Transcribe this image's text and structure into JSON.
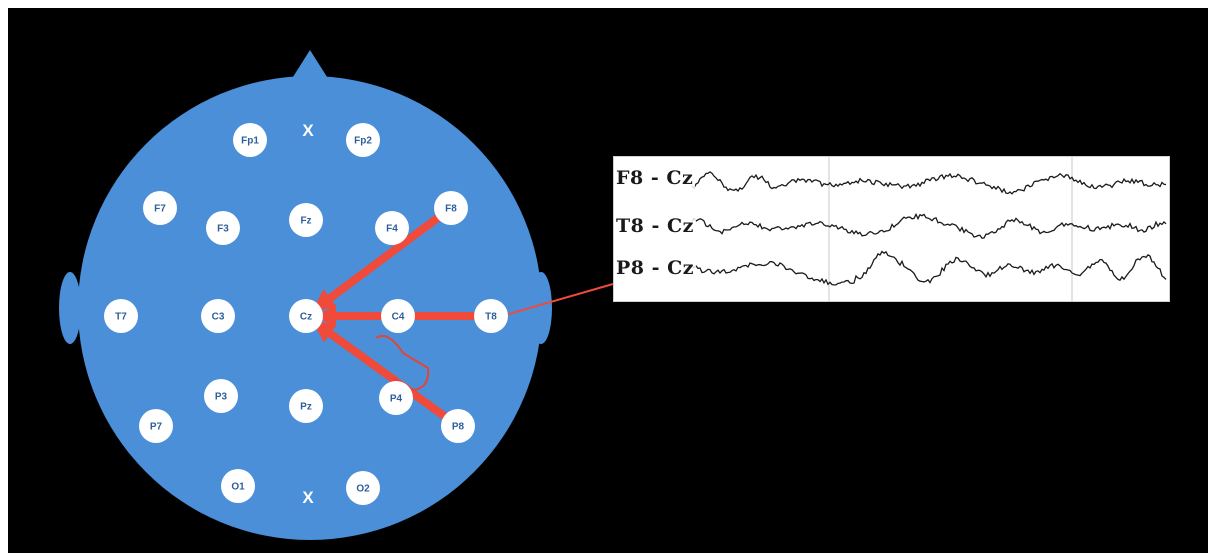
{
  "colors": {
    "background": "#000000",
    "head": "#4a8fd8",
    "electrode": "#ffffff",
    "arrow": "#f04a3a",
    "trace": "#1a1a1a"
  },
  "markers": {
    "front": "X",
    "back": "X"
  },
  "electrodes": [
    {
      "id": "Fp1",
      "label": "Fp1"
    },
    {
      "id": "Fp2",
      "label": "Fp2"
    },
    {
      "id": "F7",
      "label": "F7"
    },
    {
      "id": "F3",
      "label": "F3"
    },
    {
      "id": "Fz",
      "label": "Fz"
    },
    {
      "id": "F4",
      "label": "F4"
    },
    {
      "id": "F8",
      "label": "F8"
    },
    {
      "id": "T7",
      "label": "T7"
    },
    {
      "id": "C3",
      "label": "C3"
    },
    {
      "id": "Cz",
      "label": "Cz"
    },
    {
      "id": "C4",
      "label": "C4"
    },
    {
      "id": "T8",
      "label": "T8"
    },
    {
      "id": "P7",
      "label": "P7"
    },
    {
      "id": "P3",
      "label": "P3"
    },
    {
      "id": "Pz",
      "label": "Pz"
    },
    {
      "id": "P4",
      "label": "P4"
    },
    {
      "id": "P8",
      "label": "P8"
    },
    {
      "id": "O1",
      "label": "O1"
    },
    {
      "id": "O2",
      "label": "O2"
    }
  ],
  "arrows": [
    {
      "from": "F8",
      "to": "Cz"
    },
    {
      "from": "T8",
      "to": "Cz"
    },
    {
      "from": "P8",
      "to": "Cz"
    }
  ],
  "traces": [
    {
      "label": "F8 - Cz"
    },
    {
      "label": "T8 - Cz"
    },
    {
      "label": "P8 - Cz"
    }
  ]
}
